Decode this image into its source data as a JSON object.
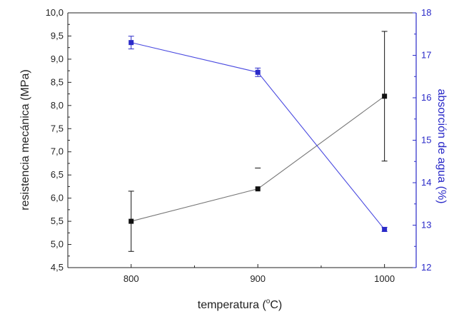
{
  "chart_data": {
    "type": "line",
    "xlabel_main": "temperatura (",
    "xlabel_sup": "o",
    "xlabel_end": "C)",
    "ylabel_left": "resistencia mecánica (MPa)",
    "ylabel_right": "absorción de agua (%)",
    "x_ticks": [
      "800",
      "900",
      "1000"
    ],
    "xlim": [
      750,
      1025
    ],
    "ylim_left": [
      4.5,
      10.0
    ],
    "ylim_right": [
      12,
      18
    ],
    "y_left_ticks": [
      "4,5",
      "5,0",
      "5,5",
      "6,0",
      "6,5",
      "7,0",
      "7,5",
      "8,0",
      "8,5",
      "9,0",
      "9,5",
      "10,0"
    ],
    "y_right_ticks": [
      "12",
      "13",
      "14",
      "15",
      "16",
      "17",
      "18"
    ],
    "series": [
      {
        "axis": "left",
        "color": "#111111",
        "line_color": "#777777",
        "marker": "square",
        "x": [
          800,
          900,
          1000
        ],
        "y": [
          5.5,
          6.2,
          8.2
        ],
        "err_low": [
          0.65,
          0.0,
          1.4
        ],
        "err_high": [
          0.65,
          0.45,
          1.4
        ]
      },
      {
        "axis": "right",
        "color": "#2a2ac8",
        "line_color": "#4a4ae0",
        "marker": "square",
        "x": [
          800,
          900,
          1000
        ],
        "y": [
          17.3,
          16.6,
          12.9
        ],
        "err_low": [
          0.15,
          0.1,
          0.05
        ],
        "err_high": [
          0.15,
          0.1,
          0.05
        ]
      }
    ],
    "grid": false,
    "legend": "none"
  }
}
